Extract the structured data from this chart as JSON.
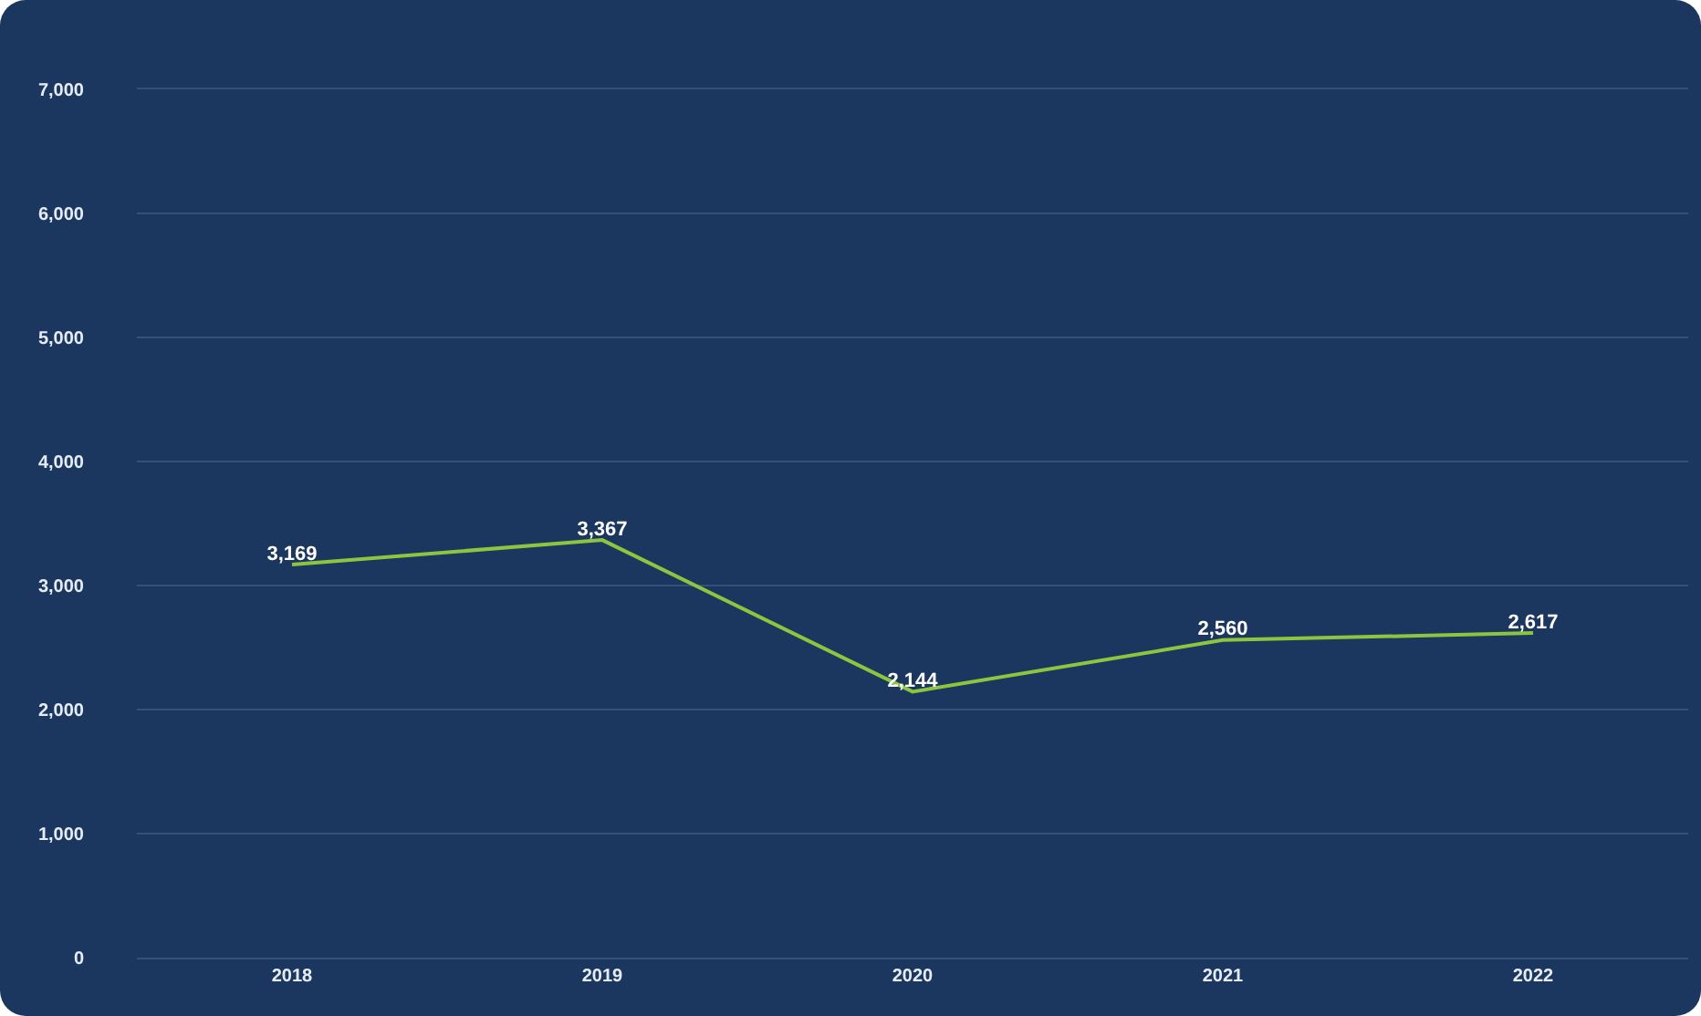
{
  "chart_data": {
    "type": "line",
    "categories": [
      "2018",
      "2019",
      "2020",
      "2021",
      "2022"
    ],
    "series": [
      {
        "color": "#8cc63f",
        "values": [
          3169,
          3367,
          2144,
          2560,
          2617
        ]
      }
    ],
    "value_labels": [
      "3,169",
      "3,367",
      "2,144",
      "2,560",
      "2,617"
    ],
    "ylim": [
      0,
      7000
    ],
    "yticks": [
      {
        "value": 0,
        "label": "0"
      },
      {
        "value": 1000,
        "label": "1,000"
      },
      {
        "value": 2000,
        "label": "2,000"
      },
      {
        "value": 3000,
        "label": "3,000"
      },
      {
        "value": 4000,
        "label": "4,000"
      },
      {
        "value": 5000,
        "label": "5,000"
      },
      {
        "value": 6000,
        "label": "6,000"
      },
      {
        "value": 7000,
        "label": "7,000"
      }
    ],
    "grid": "y",
    "marker": "none",
    "line_style": "solid"
  }
}
